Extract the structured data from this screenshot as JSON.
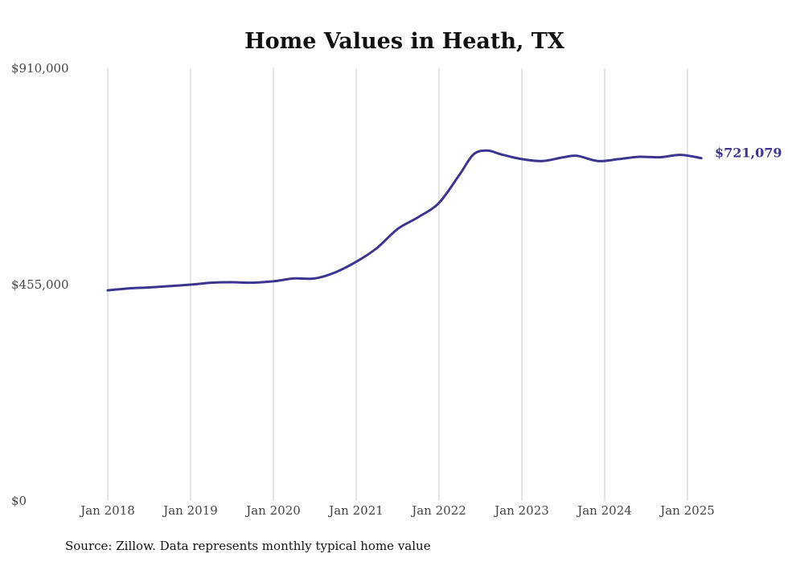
{
  "chart_data": {
    "type": "line",
    "title": "Home Values in Heath, TX",
    "source": "Source: Zillow. Data represents monthly typical home value",
    "y_ticks": [
      {
        "value": 0,
        "label": "$0"
      },
      {
        "value": 455000,
        "label": "$455,000"
      },
      {
        "value": 910000,
        "label": "$910,000"
      }
    ],
    "ylim": [
      0,
      910000
    ],
    "x_ticks": [
      {
        "value": "2018-01",
        "label": "Jan 2018"
      },
      {
        "value": "2019-01",
        "label": "Jan 2019"
      },
      {
        "value": "2020-01",
        "label": "Jan 2020"
      },
      {
        "value": "2021-01",
        "label": "Jan 2021"
      },
      {
        "value": "2022-01",
        "label": "Jan 2022"
      },
      {
        "value": "2023-01",
        "label": "Jan 2023"
      },
      {
        "value": "2024-01",
        "label": "Jan 2024"
      },
      {
        "value": "2025-01",
        "label": "Jan 2025"
      }
    ],
    "xlim": [
      "2018-01",
      "2025-03"
    ],
    "grid": "vertical",
    "line_color": "#3d3490",
    "end_label": "$721,079",
    "series": [
      {
        "points": [
          [
            "2018-01",
            443000
          ],
          [
            "2018-04",
            447000
          ],
          [
            "2018-07",
            449000
          ],
          [
            "2018-10",
            452000
          ],
          [
            "2019-01",
            455000
          ],
          [
            "2019-04",
            459000
          ],
          [
            "2019-07",
            460000
          ],
          [
            "2019-10",
            459000
          ],
          [
            "2020-01",
            462000
          ],
          [
            "2020-04",
            468000
          ],
          [
            "2020-07",
            468000
          ],
          [
            "2020-10",
            481000
          ],
          [
            "2021-01",
            503000
          ],
          [
            "2021-04",
            532000
          ],
          [
            "2021-07",
            572000
          ],
          [
            "2021-10",
            597000
          ],
          [
            "2022-01",
            627000
          ],
          [
            "2022-04",
            687000
          ],
          [
            "2022-06",
            729000
          ],
          [
            "2022-08",
            737000
          ],
          [
            "2022-10",
            729000
          ],
          [
            "2023-01",
            719000
          ],
          [
            "2023-04",
            715000
          ],
          [
            "2023-07",
            723000
          ],
          [
            "2023-09",
            726000
          ],
          [
            "2023-12",
            715000
          ],
          [
            "2024-03",
            719000
          ],
          [
            "2024-06",
            724000
          ],
          [
            "2024-09",
            723000
          ],
          [
            "2024-12",
            728000
          ],
          [
            "2025-03",
            721079
          ]
        ]
      }
    ]
  }
}
